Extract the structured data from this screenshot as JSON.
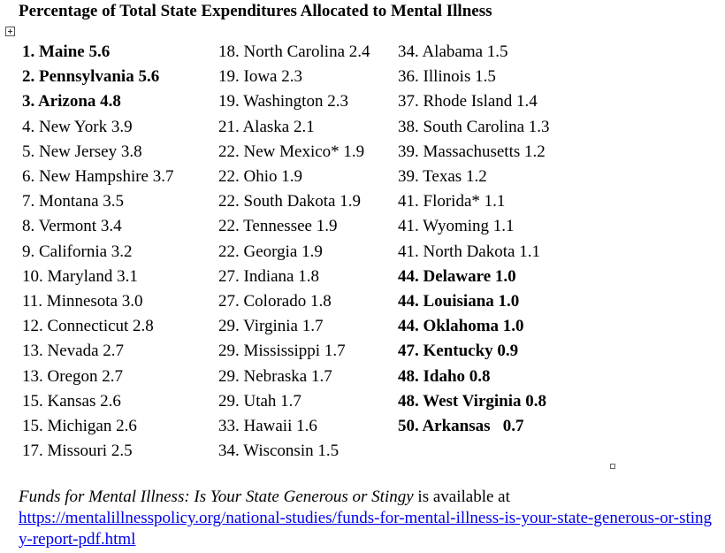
{
  "title": "Percentage of Total State Expenditures Allocated to Mental Illness",
  "columns": [
    [
      {
        "text": "1. Maine 5.6",
        "bold": true
      },
      {
        "text": "2. Pennsylvania 5.6",
        "bold": true
      },
      {
        "text": "3. Arizona 4.8",
        "bold": true
      },
      {
        "text": "4. New York 3.9",
        "bold": false
      },
      {
        "text": "5. New Jersey 3.8",
        "bold": false
      },
      {
        "text": "6. New Hampshire 3.7",
        "bold": false
      },
      {
        "text": "7. Montana 3.5",
        "bold": false
      },
      {
        "text": "8. Vermont 3.4",
        "bold": false
      },
      {
        "text": "9. California 3.2",
        "bold": false
      },
      {
        "text": "10. Maryland 3.1",
        "bold": false
      },
      {
        "text": "11. Minnesota 3.0",
        "bold": false
      },
      {
        "text": "12. Connecticut 2.8",
        "bold": false
      },
      {
        "text": "13. Nevada 2.7",
        "bold": false
      },
      {
        "text": "13. Oregon 2.7",
        "bold": false
      },
      {
        "text": "15. Kansas 2.6",
        "bold": false
      },
      {
        "text": "15. Michigan 2.6",
        "bold": false
      },
      {
        "text": "17. Missouri 2.5",
        "bold": false
      }
    ],
    [
      {
        "text": "18. North Carolina 2.4",
        "bold": false
      },
      {
        "text": "19. Iowa 2.3",
        "bold": false
      },
      {
        "text": "19. Washington 2.3",
        "bold": false
      },
      {
        "text": "21. Alaska 2.1",
        "bold": false
      },
      {
        "text": "22. New Mexico* 1.9",
        "bold": false
      },
      {
        "text": "22. Ohio 1.9",
        "bold": false
      },
      {
        "text": "22. South Dakota 1.9",
        "bold": false
      },
      {
        "text": "22. Tennessee 1.9",
        "bold": false
      },
      {
        "text": "22. Georgia 1.9",
        "bold": false
      },
      {
        "text": "27. Indiana 1.8",
        "bold": false
      },
      {
        "text": "27. Colorado 1.8",
        "bold": false
      },
      {
        "text": "29. Virginia 1.7",
        "bold": false
      },
      {
        "text": "29. Mississippi 1.7",
        "bold": false
      },
      {
        "text": "29. Nebraska 1.7",
        "bold": false
      },
      {
        "text": "29. Utah 1.7",
        "bold": false
      },
      {
        "text": "33. Hawaii 1.6",
        "bold": false
      },
      {
        "text": "34. Wisconsin 1.5",
        "bold": false
      }
    ],
    [
      {
        "text": "34. Alabama 1.5",
        "bold": false
      },
      {
        "text": "36. Illinois 1.5",
        "bold": false
      },
      {
        "text": "37. Rhode Island 1.4",
        "bold": false
      },
      {
        "text": "38. South Carolina 1.3",
        "bold": false
      },
      {
        "text": "39. Massachusetts 1.2",
        "bold": false
      },
      {
        "text": "39. Texas 1.2",
        "bold": false
      },
      {
        "text": "41. Florida* 1.1",
        "bold": false
      },
      {
        "text": "41. Wyoming 1.1",
        "bold": false
      },
      {
        "text": "41. North Dakota 1.1",
        "bold": false
      },
      {
        "text": "44. Delaware 1.0",
        "bold": true
      },
      {
        "text": "44. Louisiana 1.0",
        "bold": true
      },
      {
        "text": "44. Oklahoma 1.0",
        "bold": true
      },
      {
        "text": "47. Kentucky 0.9",
        "bold": true
      },
      {
        "text": "48. Idaho 0.8",
        "bold": true
      },
      {
        "text": "48. West Virginia 0.8",
        "bold": true
      },
      {
        "text": "50. Arkansas   0.7",
        "bold": true
      }
    ]
  ],
  "footer": {
    "publication": "Funds for Mental Illness: Is Your State Generous or Stingy",
    "suffix": " is available at",
    "link_text": "https://mentalillnesspolicy.org/national-studies/funds-for-mental-illness-is-your-state-generous-or-stingy-report-pdf.html",
    "link_href": "https://mentalillnesspolicy.org/national-studies/funds-for-mental-illness-is-your-state-generous-or-stingy-report-pdf.html"
  }
}
